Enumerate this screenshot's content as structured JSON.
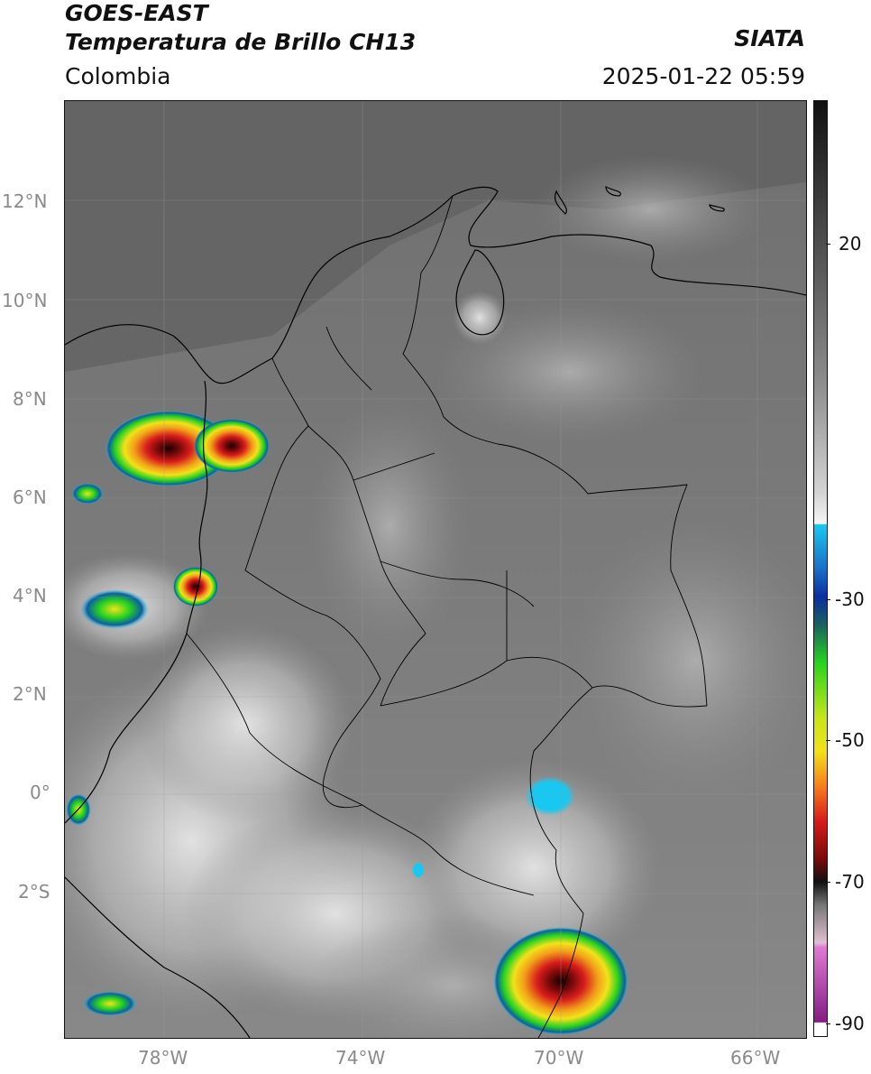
{
  "header": {
    "satellite": "GOES-EAST",
    "product": "Temperatura de Brillo CH13",
    "region": "Colombia",
    "brand": "SIATA",
    "timestamp": "2025-01-22 05:59"
  },
  "axes": {
    "lat_labels": [
      "12°N",
      "10°N",
      "8°N",
      "6°N",
      "4°N",
      "2°N",
      "0°",
      "2°S"
    ],
    "lon_labels": [
      "78°W",
      "74°W",
      "70°W",
      "66°W"
    ]
  },
  "colorbar": {
    "tick_labels": [
      "20",
      "-30",
      "-50",
      "-70",
      "-90"
    ],
    "colors": {
      "grey_top": "#1a1a1a",
      "grey_mid": "#9a9a9a",
      "white": "#f4f4f4",
      "cyan": "#19c8f0",
      "blue": "#0a2fa0",
      "green": "#26d31f",
      "yellow": "#f2e21a",
      "orange": "#f7861a",
      "red": "#d71c1c",
      "dark_red": "#5a0808",
      "magenta": "#d060c8",
      "purple": "#861a80"
    }
  }
}
